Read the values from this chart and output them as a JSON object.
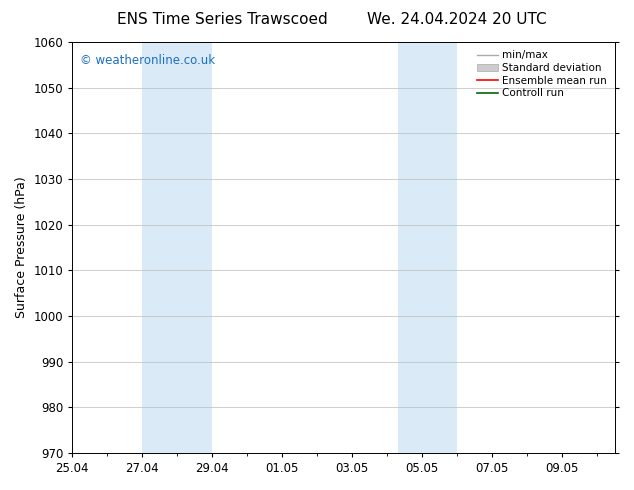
{
  "title_left": "ENS Time Series Trawscoed",
  "title_right": "We. 24.04.2024 20 UTC",
  "ylabel": "Surface Pressure (hPa)",
  "ylim": [
    970,
    1060
  ],
  "yticks": [
    970,
    980,
    990,
    1000,
    1010,
    1020,
    1030,
    1040,
    1050,
    1060
  ],
  "xtick_labels": [
    "25.04",
    "27.04",
    "29.04",
    "01.05",
    "03.05",
    "05.05",
    "07.05",
    "09.05"
  ],
  "xtick_positions": [
    0,
    2,
    4,
    6,
    8,
    10,
    12,
    14
  ],
  "xlim": [
    0,
    15.5
  ],
  "shaded_regions": [
    {
      "x_start": 2.0,
      "x_end": 4.0
    },
    {
      "x_start": 9.3,
      "x_end": 11.0
    }
  ],
  "shaded_color": "#daeaf7",
  "watermark_text": "© weatheronline.co.uk",
  "watermark_color": "#1a6fc4",
  "bg_color": "#ffffff",
  "grid_color": "#bbbbbb",
  "title_fontsize": 11,
  "axis_label_fontsize": 9,
  "tick_fontsize": 8.5,
  "legend_fontsize": 7.5
}
